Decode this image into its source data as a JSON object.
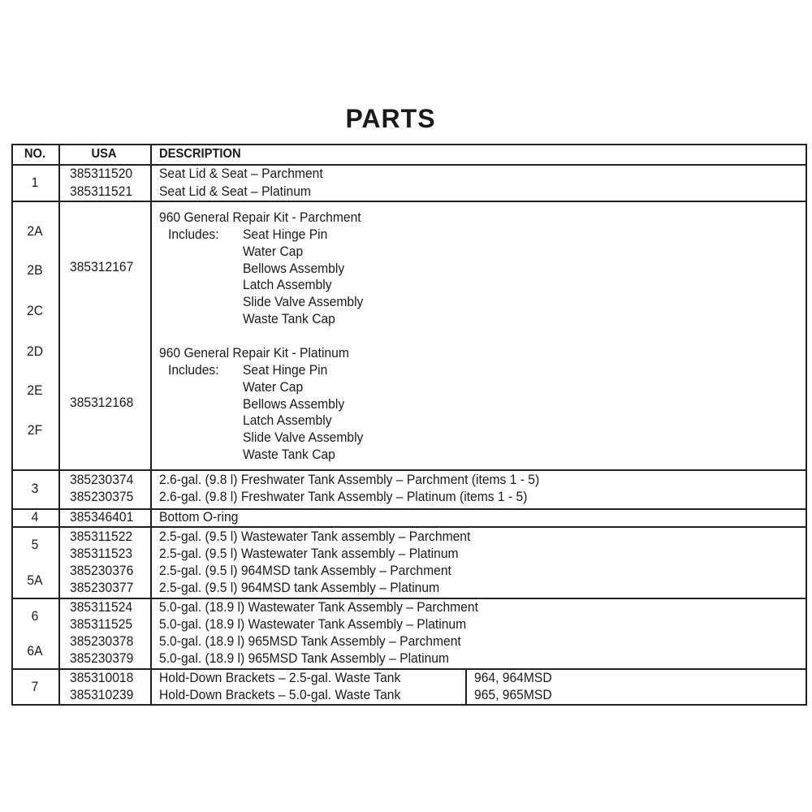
{
  "title": "PARTS",
  "headers": {
    "no": "NO.",
    "usa": "USA",
    "description": "DESCRIPTION"
  },
  "rows": [
    {
      "no": [
        "1"
      ],
      "usa": [
        "385311520",
        "385311521"
      ],
      "description": [
        "Seat Lid & Seat – Parchment",
        "Seat Lid & Seat – Platinum"
      ]
    },
    {
      "no": [
        "2A",
        "2B",
        "2C",
        "2D",
        "2E",
        "2F"
      ],
      "usa": [
        "385312167",
        "385312168"
      ],
      "kits": [
        {
          "name": "960 General Repair Kit - Parchment",
          "includes_label": "Includes:",
          "items": [
            "Seat Hinge Pin",
            "Water Cap",
            "Bellows Assembly",
            "Latch Assembly",
            "Slide Valve Assembly",
            "Waste Tank Cap"
          ]
        },
        {
          "name": "960 General Repair Kit - Platinum",
          "includes_label": "Includes:",
          "items": [
            "Seat Hinge Pin",
            "Water Cap",
            "Bellows Assembly",
            "Latch Assembly",
            "Slide Valve Assembly",
            "Waste Tank Cap"
          ]
        }
      ]
    },
    {
      "no": [
        "3"
      ],
      "usa": [
        "385230374",
        "385230375"
      ],
      "description": [
        "2.6-gal. (9.8 l) Freshwater Tank Assembly – Parchment (items 1 - 5)",
        "2.6-gal. (9.8 l) Freshwater Tank Assembly – Platinum (items 1 - 5)"
      ]
    },
    {
      "no": [
        "4"
      ],
      "usa": [
        "385346401"
      ],
      "description": [
        "Bottom O-ring"
      ]
    },
    {
      "no": [
        "5",
        "5A"
      ],
      "usa": [
        "385311522",
        "385311523",
        "385230376",
        "385230377"
      ],
      "description": [
        "2.5-gal. (9.5 l) Wastewater Tank assembly – Parchment",
        "2.5-gal. (9.5 l) Wastewater Tank assembly – Platinum",
        "2.5-gal. (9.5 l) 964MSD tank Assembly – Parchment",
        "2.5-gal. (9.5 l) 964MSD tank Assembly – Platinum"
      ]
    },
    {
      "no": [
        "6",
        "6A"
      ],
      "usa": [
        "385311524",
        "385311525",
        "385230378",
        "385230379"
      ],
      "description": [
        "5.0-gal. (18.9 l) Wastewater Tank Assembly – Parchment",
        "5.0-gal. (18.9 l) Wastewater Tank Assembly – Platinum",
        "5.0-gal. (18.9 l) 965MSD Tank Assembly – Parchment",
        "5.0-gal. (18.9 l) 965MSD Tank Assembly – Platinum"
      ]
    },
    {
      "no": [
        "7"
      ],
      "usa": [
        "385310018",
        "385310239"
      ],
      "description": [
        "Hold-Down Brackets – 2.5-gal. Waste Tank",
        "Hold-Down Brackets – 5.0-gal. Waste Tank"
      ],
      "models": [
        "964, 964MSD",
        "965, 965MSD"
      ]
    }
  ]
}
